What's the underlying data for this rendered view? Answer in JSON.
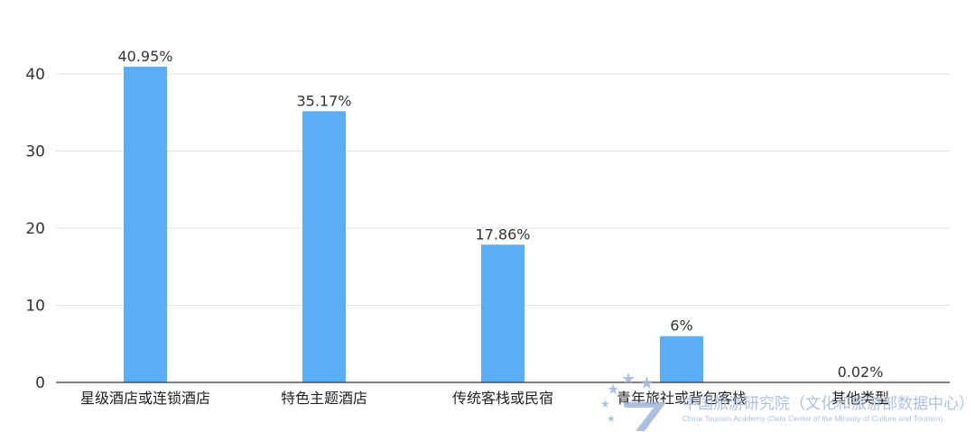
{
  "chart_data": {
    "type": "bar",
    "categories": [
      "星级酒店或连锁酒店",
      "特色主题酒店",
      "传统客栈或民宿",
      "青年旅社或背包客栈",
      "其他类型"
    ],
    "values": [
      40.95,
      35.17,
      17.86,
      6,
      0.02
    ],
    "data_labels": [
      "40.95%",
      "35.17%",
      "17.86%",
      "6%",
      "0.02%"
    ],
    "ylim": [
      0,
      40
    ],
    "yticks": [
      0,
      10,
      20,
      30,
      40
    ],
    "bar_color": "#5aaef5",
    "grid": true,
    "legend": "none"
  },
  "watermark": {
    "cn": "中国旅游研究院（文化和旅游部数据中心）",
    "en": "China Tourism Academy (Data Center of the Ministry of Culture and Tourism)",
    "color": "#9fb6dc"
  }
}
